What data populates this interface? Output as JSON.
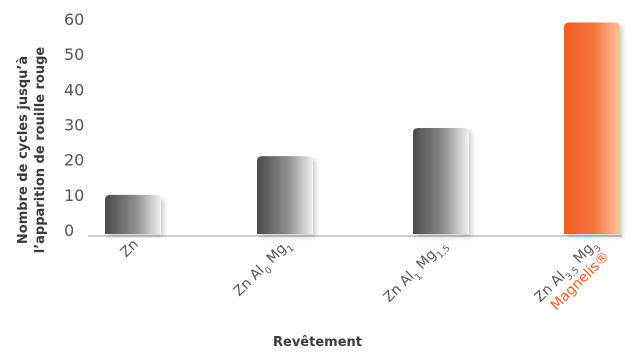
{
  "chart_data": {
    "type": "bar",
    "xlabel": "Revêtement",
    "ylabel_line1": "Nombre de cycles jusqu’à",
    "ylabel_line2": "l’apparition de rouille rouge",
    "ylim": [
      0,
      60
    ],
    "yticks": [
      0,
      10,
      20,
      30,
      40,
      50,
      60
    ],
    "grid": false,
    "categories": [
      {
        "label": "Zn",
        "parts": [
          {
            "t": "Zn"
          }
        ],
        "value": 10,
        "highlight": false
      },
      {
        "label": "Zn Al0 Mg1",
        "parts": [
          {
            "t": "Zn Al"
          },
          {
            "t": "0",
            "sub": true
          },
          {
            "t": " Mg"
          },
          {
            "t": "1",
            "sub": true
          }
        ],
        "value": 21,
        "highlight": false
      },
      {
        "label": "Zn Al1 Mg1,5",
        "parts": [
          {
            "t": "Zn Al"
          },
          {
            "t": "1",
            "sub": true
          },
          {
            "t": " Mg"
          },
          {
            "t": "1,5",
            "sub": true
          }
        ],
        "value": 29,
        "highlight": false
      },
      {
        "label": "Zn Al3,5 Mg3",
        "parts": [
          {
            "t": "Zn Al"
          },
          {
            "t": "3,5",
            "sub": true
          },
          {
            "t": " Mg"
          },
          {
            "t": "3",
            "sub": true
          }
        ],
        "value": 59,
        "highlight": true,
        "brand": "Magnelis®"
      }
    ],
    "colors": {
      "bar_dark": "#4a4a4c",
      "bar_light": "#f2f2f2",
      "accent": "#f05a22",
      "accent_light": "#ffc2a0",
      "text": "#555555",
      "axis": "#9a9a9a"
    }
  }
}
